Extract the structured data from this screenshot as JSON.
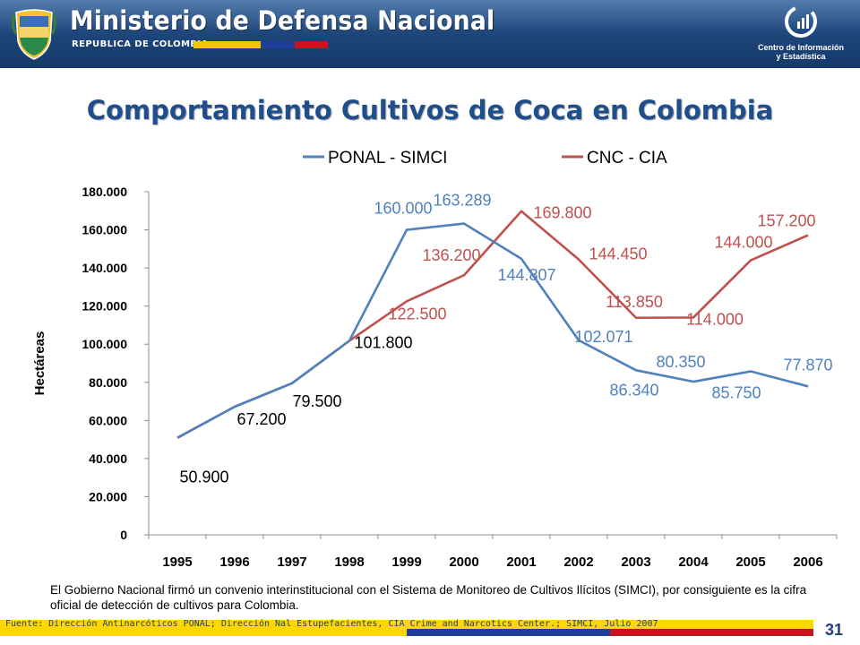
{
  "header": {
    "title": "Ministerio de Defensa Nacional",
    "subtitle": "REPUBLICA DE COLOMBIA",
    "logo_line1": "Centro de Información",
    "logo_line2": "y Estadística",
    "colors": {
      "bar": "#1d4478",
      "flag_yellow": "#f5c400",
      "flag_blue": "#1f3f9a",
      "flag_red": "#c4161c"
    }
  },
  "slide": {
    "title": "Comportamiento Cultivos de Coca en Colombia",
    "caption": "El Gobierno Nacional firmó un convenio interinstitucional con el Sistema de Monitoreo de Cultivos Ilícitos (SIMCI), por consiguiente es la cifra oficial de detección de cultivos para Colombia.",
    "source": "Fuente: Dirección Antinarcóticos PONAL; Dirección Nal Estupefacientes, CIA Crime and Narcotics Center.; SIMCI, Julio 2007",
    "page_number": "31"
  },
  "chart_data": {
    "type": "line",
    "title": "",
    "ylabel": "Hectáreas",
    "xlabel": "",
    "x": [
      "1995",
      "1996",
      "1997",
      "1998",
      "1999",
      "2000",
      "2001",
      "2002",
      "2003",
      "2004",
      "2005",
      "2006"
    ],
    "ylim": [
      0,
      180000
    ],
    "yticks": [
      0,
      20000,
      40000,
      60000,
      80000,
      100000,
      120000,
      140000,
      160000,
      180000
    ],
    "ytick_labels": [
      "0",
      "20.000",
      "40.000",
      "60.000",
      "80.000",
      "100.000",
      "120.000",
      "140.000",
      "160.000",
      "180.000"
    ],
    "legend_position": "top",
    "grid": false,
    "series": [
      {
        "name": "PONAL - SIMCI",
        "color": "#4f81bd",
        "values": [
          50900,
          67200,
          79500,
          101800,
          160000,
          163289,
          144807,
          102071,
          86340,
          80350,
          85750,
          77870
        ],
        "labels": [
          "",
          "",
          "",
          "",
          "160.000",
          "163.289",
          "144.807",
          "102.071",
          "86.340",
          "80.350",
          "85.750",
          "77.870"
        ]
      },
      {
        "name": "CNC - CIA",
        "color": "#c0504d",
        "values": [
          50900,
          67200,
          79500,
          101800,
          122500,
          136200,
          169800,
          144450,
          113850,
          114000,
          144000,
          157200
        ],
        "labels": [
          "",
          "",
          "",
          "",
          "122.500",
          "136.200",
          "169.800",
          "144.450",
          "113.850",
          "114.000",
          "144.000",
          "157.200"
        ]
      }
    ],
    "shared_labels": [
      "50.900",
      "67.200",
      "79.500",
      "101.800"
    ]
  }
}
